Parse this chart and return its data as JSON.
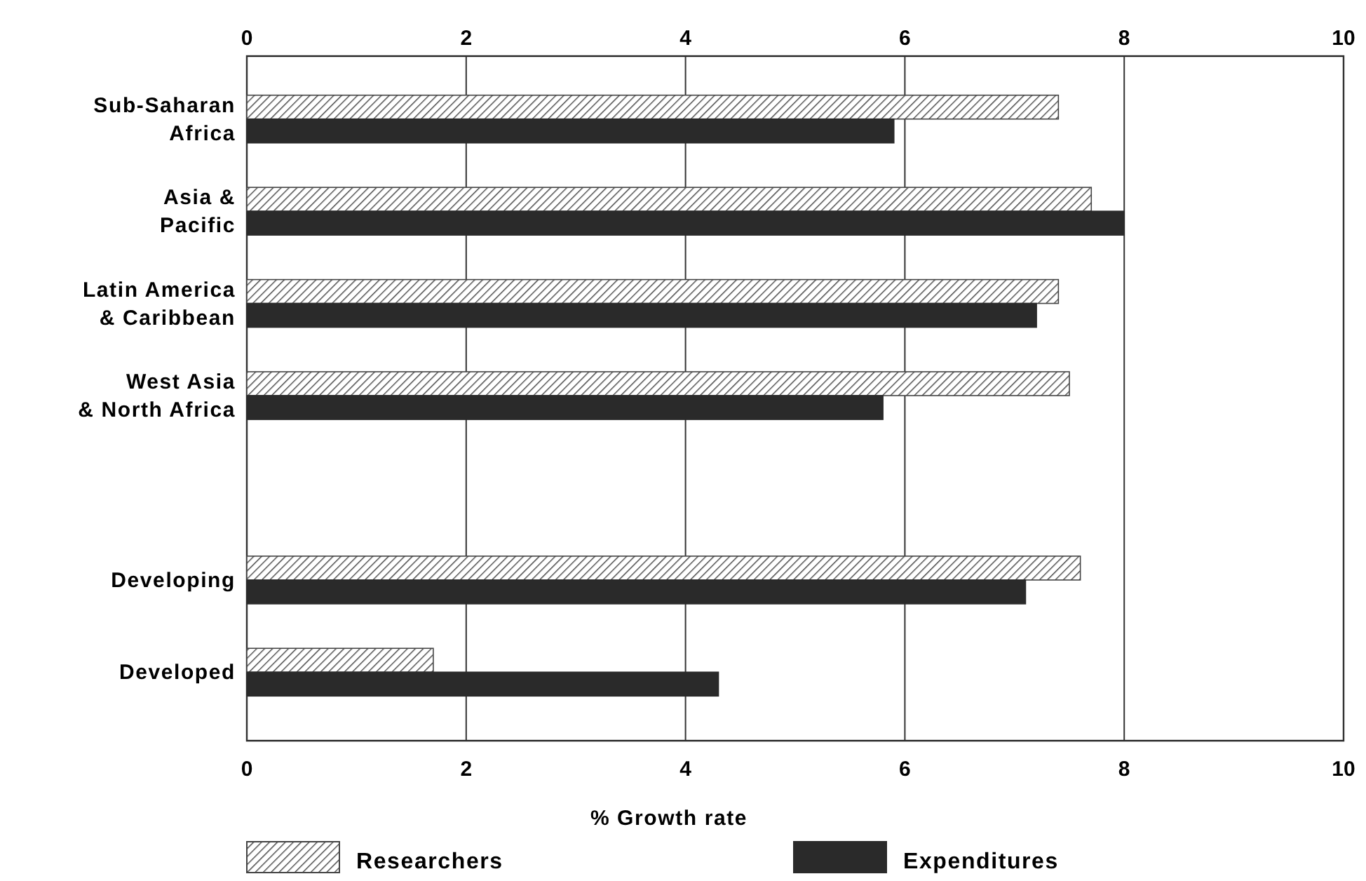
{
  "chart_data": {
    "type": "bar",
    "orientation": "horizontal",
    "categories": [
      "Sub-Saharan\nAfrica",
      "Asia &\nPacific",
      "Latin America\n& Caribbean",
      "West Asia\n& North Africa",
      null,
      "Developing",
      "Developed"
    ],
    "series": [
      {
        "name": "Researchers",
        "color": "#444444",
        "values": [
          7.4,
          7.7,
          7.4,
          7.5,
          null,
          7.6,
          1.7
        ]
      },
      {
        "name": "Expenditures",
        "color": "#2a2a2a",
        "values": [
          5.9,
          8.0,
          7.2,
          5.8,
          null,
          7.1,
          4.3
        ]
      }
    ],
    "xlabel": "% Growth rate",
    "xlim": [
      0,
      10
    ],
    "xticks": [
      0,
      2,
      4,
      6,
      8,
      10
    ],
    "x2lim": [
      0,
      10
    ],
    "x2ticks": [
      0,
      2,
      4,
      6,
      8,
      10
    ],
    "grid": "x",
    "legend": "bottom"
  }
}
